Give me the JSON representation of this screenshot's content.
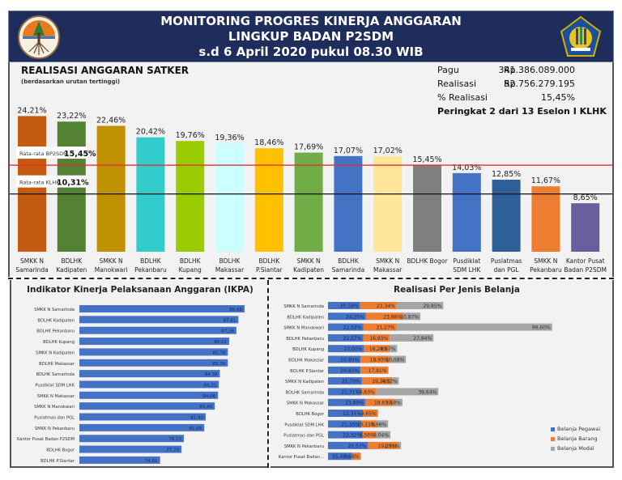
{
  "header": {
    "title_lines": [
      "MONITORING PROGRES KINERJA ANGGARAN",
      "LINGKUP BADAN P2SDM",
      "s.d 6 April 2020 pukul 08.30 WIB"
    ],
    "logo_left": "klhk-logo-icon",
    "logo_right": "kemenkeu-logo-icon",
    "background_color": "#1f2d5c"
  },
  "summary": {
    "pagu_label": "Pagu",
    "pagu_currency": "Rp",
    "pagu_value": "341.386.089.000",
    "realisasi_label": "Realisasi",
    "realisasi_currency": "Rp",
    "realisasi_value": "52.756.279.195",
    "persen_label": "% Realisasi",
    "persen_value": "15,45%",
    "rank_text": "Peringkat 2 dari 13 Eselon I KLHK"
  },
  "chart_data": [
    {
      "type": "bar",
      "title": "REALISASI ANGGARAN SATKER",
      "subtitle": "(berdasarkan urutan tertinggi)",
      "categories": [
        [
          "SMKK N",
          "Samarinda"
        ],
        [
          "BDLHK",
          "Kadipaten"
        ],
        [
          "SMKK N",
          "Manokwari"
        ],
        [
          "BDLHK",
          "Pekanbaru"
        ],
        [
          "BDLHK",
          "Kupang"
        ],
        [
          "BDLHK",
          "Makassar"
        ],
        [
          "BDLHK",
          "P.Siantar"
        ],
        [
          "SMKK N",
          "Kadipaten"
        ],
        [
          "BDLHK",
          "Samarinda"
        ],
        [
          "SMKK N",
          "Makassar"
        ],
        [
          "BDLHK Bogor"
        ],
        [
          "Pusdiklat",
          "SDM LHK"
        ],
        [
          "Puslatmas",
          "dan PGL"
        ],
        [
          "SMKK N",
          "Pekanbaru"
        ],
        [
          "Kantor Pusat",
          "Badan P2SDM"
        ]
      ],
      "values": [
        24.21,
        23.22,
        22.46,
        20.42,
        19.76,
        19.36,
        18.46,
        17.69,
        17.07,
        17.02,
        15.45,
        14.03,
        12.85,
        11.67,
        8.65
      ],
      "value_labels": [
        "24,21%",
        "23,22%",
        "22,46%",
        "20,42%",
        "19,76%",
        "19,36%",
        "18,46%",
        "17,69%",
        "17,07%",
        "17,02%",
        "15,45%",
        "14,03%",
        "12,85%",
        "11,67%",
        "8,65%"
      ],
      "colors": [
        "#c55a11",
        "#548235",
        "#bf9000",
        "#33cccc",
        "#99cc00",
        "#ccffff",
        "#ffc000",
        "#70ad47",
        "#4472c4",
        "#ffe699",
        "#7f7f7f",
        "#4472c4",
        "#2e5f99",
        "#ed7d31",
        "#6a5f9e"
      ],
      "reference_lines": [
        {
          "label": "Rata-rata BP2SDM",
          "value": 15.45,
          "value_label": "15,45%",
          "color": "#e03030"
        },
        {
          "label": "Rata-rata KLHK",
          "value": 10.31,
          "value_label": "10,31%",
          "color": "#111111"
        }
      ],
      "ylim": [
        0,
        26
      ]
    },
    {
      "type": "bar",
      "orientation": "horizontal",
      "title": "Indikator Kinerja Pelaksanaan Anggaran (IKPA)",
      "categories": [
        "SMKK N Samarinda",
        "BDLHK Kadipaten",
        "BDLHK Pekanbaru",
        "BDLHK Kupang",
        "SMKK N Kadipaten",
        "BDLHK Makassar",
        "BDLHK Samarinda",
        "Pusdiklat SDM LHK",
        "SMKK N Makassar",
        "SMKK N Manokwari",
        "Puslatmas dan PGL",
        "SMKK N Pekanbaru",
        "Kantor Pusat Badan P2SDM",
        "BDLHK Bogor",
        "BDLHK P.Siantar"
      ],
      "values": [
        88.68,
        87.61,
        87.26,
        86.01,
        85.78,
        85.76,
        84.39,
        84.21,
        84.06,
        83.49,
        81.93,
        81.68,
        78.13,
        77.73,
        74.01
      ],
      "value_labels": [
        "88,68",
        "87,61",
        "87,26",
        "86,01",
        "85,78",
        "85,76",
        "84,39",
        "84,21",
        "84,06",
        "83,49",
        "81,93",
        "81,68",
        "78,13",
        "77,73",
        "74,01"
      ],
      "color": "#4472c4",
      "xlim": [
        60,
        90
      ]
    },
    {
      "type": "bar",
      "orientation": "horizontal",
      "stacked": true,
      "title": "Realisasi Per Jenis Belanja",
      "categories": [
        "SMKK N Samarinda",
        "BDLHK Kadipaten",
        "SMKK N Manokwari",
        "BDLHK Pekanbaru",
        "BDLHK Kupang",
        "BDLHK Makassar",
        "BDLHK P.Siantar",
        "SMKK N Kadipaten",
        "BDLHK Samarinda",
        "SMKK N Makassar",
        "BDLHK Bogor",
        "Pusdiklat SDM LHK",
        "Puslatmas dan PGL",
        "SMKK N Pekanbaru",
        "Kantor Pusat Badan..."
      ],
      "series": [
        {
          "name": "Belanja Pegawai",
          "color": "#4472c4",
          "values": [
            20.58,
            24.25,
            22.52,
            22.57,
            23.0,
            20.8,
            20.83,
            21.7,
            21.31,
            23.8,
            22.31,
            21.35,
            22.32,
            25.57,
            15.46
          ],
          "labels": [
            "20,58%",
            "24,25%",
            "22,52%",
            "22,57%",
            "23,00%",
            "20,80%",
            "20,83%",
            "21,70%",
            "21,31%",
            "23,80%",
            "22,31%",
            "21,35%",
            "22,32%",
            "25,57%",
            "15,46%"
          ]
        },
        {
          "name": "Belanja Barang",
          "color": "#ed7d31",
          "values": [
            23.34,
            23.98,
            21.27,
            16.93,
            16.28,
            18.93,
            17.81,
            19.29,
            9.63,
            18.63,
            9.65,
            10.11,
            8.56,
            19.25,
            5.58
          ],
          "labels": [
            "23,34%",
            "23,98%",
            "21,27%",
            "16,93%",
            "16,28%",
            "18,93%",
            "17,81%",
            "19,29%",
            "9,63%",
            "18,63%",
            "9,65%",
            "10,11%",
            "8,56%",
            "19,25%",
            "5,58%"
          ]
        },
        {
          "name": "Belanja Modal",
          "color": "#a5a5a5",
          "values": [
            29.85,
            10.87,
            99.6,
            27.94,
            4.97,
            10.08,
            0,
            4.33,
            39.64,
            5.18,
            0,
            6.98,
            9.04,
            1.91,
            0
          ],
          "labels": [
            "29,85%",
            "10,87%",
            "99,60%",
            "27,94%",
            "4,97%",
            "10,08%",
            "",
            "4,33%",
            "39,64%",
            "5,18%",
            "",
            "6,98%",
            "9,04%",
            "1,91%",
            ""
          ]
        }
      ],
      "legend_position": "bottom-right"
    }
  ]
}
